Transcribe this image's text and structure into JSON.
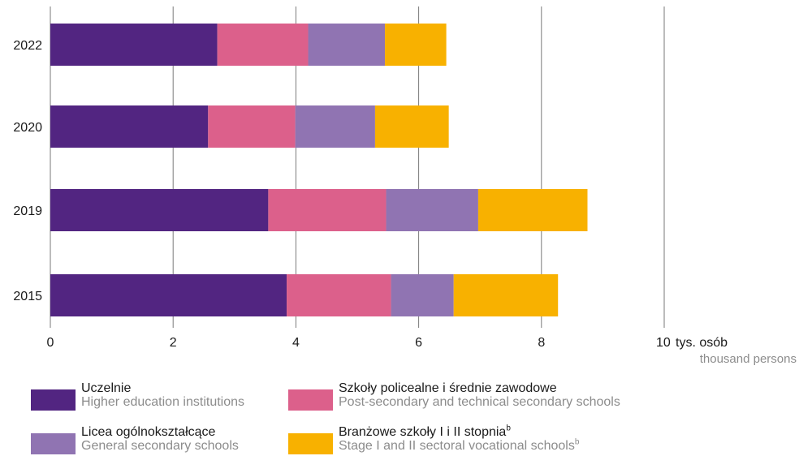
{
  "chart_data": {
    "type": "bar",
    "orientation": "horizontal",
    "stacked": true,
    "categories": [
      "2022",
      "2020",
      "2019",
      "2015"
    ],
    "series": [
      {
        "name": "Uczelnie",
        "name_en": "Higher education institutions",
        "color": "#522581",
        "values": [
          2.72,
          2.57,
          3.55,
          3.85
        ]
      },
      {
        "name": "Szkoły policealne i średnie zawodowe",
        "name_en": "Post-secondary and technical secondary schools",
        "color": "#dc608b",
        "values": [
          1.48,
          1.42,
          1.92,
          1.7
        ]
      },
      {
        "name": "Licea ogólnokształcące",
        "name_en": "General secondary schools",
        "color": "#9074b2",
        "values": [
          1.25,
          1.3,
          1.5,
          1.02
        ]
      },
      {
        "name": "Branżowe szkoły I i II stopnia",
        "name_en": "Stage I and II sectoral vocational schools",
        "name_sup": "b",
        "color": "#f8b100",
        "values": [
          1.0,
          1.2,
          1.78,
          1.7
        ]
      }
    ],
    "xlim": [
      0,
      10
    ],
    "xticks": [
      "0",
      "2",
      "4",
      "6",
      "8",
      "10"
    ],
    "unit_pl": "tys. osób",
    "unit_en": "thousand persons",
    "grid": true,
    "legend_position": "bottom"
  }
}
